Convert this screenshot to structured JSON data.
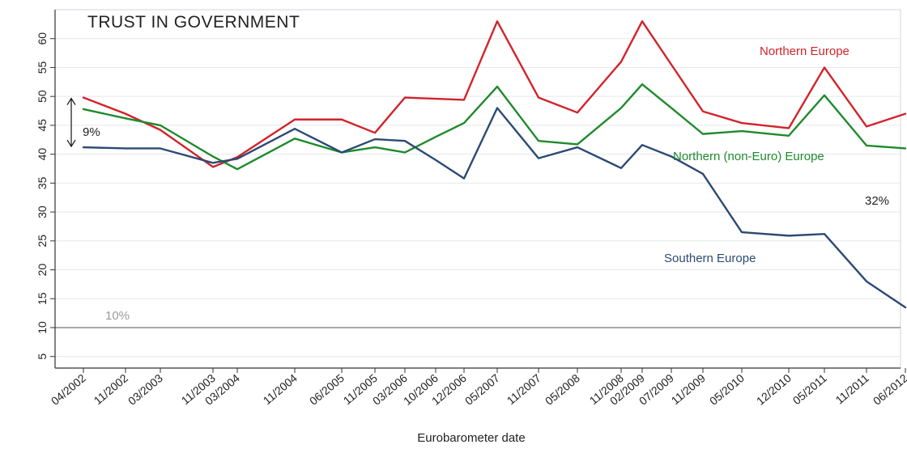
{
  "chart_data": {
    "type": "line",
    "title": "TRUST IN GOVERNMENT",
    "xlabel": "Eurobarometer date",
    "ylabel": "",
    "ylim": [
      3,
      65
    ],
    "yticks": [
      5,
      10,
      15,
      20,
      25,
      30,
      35,
      40,
      45,
      50,
      55,
      60
    ],
    "grid": true,
    "categories": [
      "04/2002",
      "11/2002",
      "03/2003",
      "11/2003",
      "03/2004",
      "11/2004",
      "06/2005",
      "11/2005",
      "03/2006",
      "10/2006",
      "12/2006",
      "05/2007",
      "11/2007",
      "05/2008",
      "11/2008",
      "02/2009",
      "07/2009",
      "11/2009",
      "05/2010",
      "12/2010",
      "05/2011",
      "11/2011",
      "06/2012"
    ],
    "series": [
      {
        "name": "Northern Europe",
        "color": "#d2232a",
        "values": [
          49.8,
          47.0,
          44.2,
          37.8,
          39.5,
          46.0,
          46.0,
          43.7,
          49.8,
          49.6,
          49.4,
          63.0,
          49.8,
          47.2,
          56.0,
          63.0,
          55.5,
          47.4,
          45.4,
          44.5,
          55.0,
          44.8,
          47.0
        ]
      },
      {
        "name": "Northern (non-Euro) Europe",
        "color": "#1f8a2c",
        "values": [
          47.8,
          46.2,
          45.0,
          39.6,
          37.4,
          42.7,
          40.3,
          41.2,
          40.3,
          43.0,
          45.4,
          51.7,
          42.3,
          41.7,
          48.0,
          52.1,
          48.0,
          43.5,
          44.0,
          43.2,
          50.2,
          41.5,
          41.0
        ]
      },
      {
        "name": "Southern Europe",
        "color": "#2c4a73",
        "values": [
          41.2,
          41.0,
          41.0,
          38.5,
          39.2,
          44.4,
          40.3,
          42.6,
          42.3,
          39.0,
          35.8,
          48.0,
          39.3,
          41.2,
          37.6,
          41.6,
          39.6,
          36.6,
          26.5,
          25.9,
          26.2,
          18.0,
          13.5
        ]
      }
    ],
    "annotations": [
      {
        "text": "9%",
        "color": "#222222"
      },
      {
        "text": "32%",
        "color": "#222222"
      },
      {
        "text": "10%",
        "color": "#9a9a9a"
      }
    ],
    "reference_line": 10
  }
}
